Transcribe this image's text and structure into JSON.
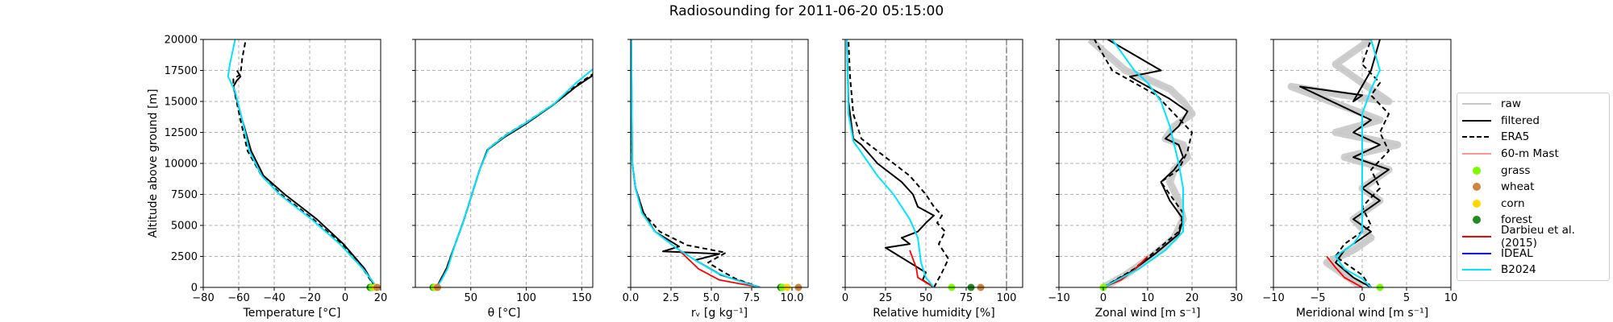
{
  "title": "Radiosounding for 2011-06-20 05:15:00",
  "colors": {
    "raw": "#c8c8c8",
    "filtered": "#000000",
    "era5": "#000000",
    "mast": "#ff5555",
    "grass": "#7cfc00",
    "wheat": "#cd853f",
    "corn": "#ffd700",
    "forest": "#228b22",
    "darbieu": "#ff0000",
    "ideal": "#0000ff",
    "b2024": "#00e5ff"
  },
  "legend": [
    {
      "key": "raw",
      "label": "raw",
      "style": "line"
    },
    {
      "key": "filtered",
      "label": "filtered",
      "style": "line"
    },
    {
      "key": "era5",
      "label": "ERA5",
      "style": "dash"
    },
    {
      "key": "mast",
      "label": "60-m Mast",
      "style": "thin"
    },
    {
      "key": "grass",
      "label": "grass",
      "style": "dot"
    },
    {
      "key": "wheat",
      "label": "wheat",
      "style": "dot"
    },
    {
      "key": "corn",
      "label": "corn",
      "style": "dot"
    },
    {
      "key": "forest",
      "label": "forest",
      "style": "dot"
    },
    {
      "key": "darbieu",
      "label": "Darbieu et al. (2015)",
      "style": "line"
    },
    {
      "key": "ideal",
      "label": "IDEAL",
      "style": "line"
    },
    {
      "key": "b2024",
      "label": "B2024",
      "style": "line"
    }
  ],
  "chart_data": [
    {
      "type": "line",
      "id": "temperature",
      "xlabel": "Temperature [°C]",
      "ylabel": "Altitude above ground [m]",
      "xlim": [
        -80,
        20
      ],
      "ylim": [
        0,
        20000
      ],
      "xticks": [
        -80,
        -60,
        -40,
        -20,
        0,
        20
      ],
      "xtick_labels": [
        "−80",
        "−60",
        "−40",
        "−20",
        "0",
        "20"
      ],
      "yticks": [
        0,
        2500,
        5000,
        7500,
        10000,
        12500,
        15000,
        17500,
        20000
      ],
      "ytick_labels": [
        "0",
        "2500",
        "5000",
        "7500",
        "10000",
        "12500",
        "15000",
        "17500",
        "20000"
      ],
      "series": [
        {
          "key": "era5",
          "x": [
            17,
            10,
            -2,
            -18,
            -36,
            -47,
            -55,
            -59,
            -63,
            -63,
            -59,
            -58,
            -56
          ],
          "y": [
            0,
            1500,
            3500,
            5500,
            7500,
            9000,
            11000,
            13500,
            16200,
            16800,
            17200,
            18500,
            20000
          ]
        },
        {
          "key": "filtered",
          "x": [
            17,
            11,
            -1,
            -16,
            -34,
            -46,
            -53,
            -58,
            -63,
            -61,
            -59,
            -61
          ],
          "y": [
            0,
            1500,
            3500,
            5500,
            7500,
            9000,
            11000,
            13500,
            16200,
            16700,
            17000,
            17500
          ]
        },
        {
          "key": "b2024",
          "x": [
            18,
            10,
            -3,
            -19,
            -37,
            -47,
            -54,
            -58,
            -62,
            -66,
            -65,
            -62
          ],
          "y": [
            0,
            1500,
            3500,
            5500,
            7500,
            9000,
            11000,
            13500,
            15800,
            17000,
            18000,
            20000
          ]
        }
      ],
      "points": [
        {
          "key": "forest",
          "x": 14,
          "y": 0
        },
        {
          "key": "grass",
          "x": 15,
          "y": 0
        },
        {
          "key": "corn",
          "x": 17,
          "y": 0
        },
        {
          "key": "wheat",
          "x": 18,
          "y": 0
        }
      ]
    },
    {
      "type": "line",
      "id": "theta",
      "xlabel": "θ [°C]",
      "ylabel": "",
      "xlim": [
        0,
        160
      ],
      "ylim": [
        0,
        20000
      ],
      "xticks": [
        50,
        100,
        150
      ],
      "xtick_labels": [
        "50",
        "100",
        "150"
      ],
      "yticks": [
        0,
        2500,
        5000,
        7500,
        10000,
        12500,
        15000,
        17500,
        20000
      ],
      "ytick_labels": [],
      "series": [
        {
          "key": "era5",
          "x": [
            20,
            22,
            28,
            36,
            44,
            51,
            58,
            66,
            80,
            100,
            125,
            145,
            160
          ],
          "y": [
            0,
            500,
            1500,
            3500,
            5500,
            7500,
            9500,
            11200,
            12200,
            13300,
            14800,
            16300,
            17200
          ]
        },
        {
          "key": "filtered",
          "x": [
            19,
            22,
            28,
            36,
            44,
            51,
            58,
            65,
            80,
            100,
            124,
            145,
            160
          ],
          "y": [
            0,
            500,
            1500,
            3500,
            5500,
            7500,
            9500,
            11100,
            12100,
            13200,
            14700,
            16200,
            17100
          ]
        },
        {
          "key": "b2024",
          "x": [
            19,
            23,
            29,
            36,
            44,
            51,
            58,
            66,
            82,
            102,
            125,
            145,
            160
          ],
          "y": [
            0,
            500,
            1500,
            3500,
            5500,
            7500,
            9500,
            11200,
            12300,
            13400,
            14800,
            16500,
            17600
          ]
        }
      ],
      "points": [
        {
          "key": "forest",
          "x": 16,
          "y": 0
        },
        {
          "key": "grass",
          "x": 17,
          "y": 0
        },
        {
          "key": "corn",
          "x": 19,
          "y": 0
        },
        {
          "key": "wheat",
          "x": 20,
          "y": 0
        }
      ]
    },
    {
      "type": "line",
      "id": "rv",
      "xlabel": "rᵥ [g kg⁻¹]",
      "ylabel": "",
      "xlim": [
        0,
        11
      ],
      "ylim": [
        0,
        20000
      ],
      "xticks": [
        0,
        2.5,
        5,
        7.5,
        10
      ],
      "xtick_labels": [
        "0.0",
        "2.5",
        "5.0",
        "7.5",
        "10.0"
      ],
      "yticks": [
        0,
        2500,
        5000,
        7500,
        10000,
        12500,
        15000,
        17500,
        20000
      ],
      "ytick_labels": [],
      "series": [
        {
          "key": "era5",
          "x": [
            8,
            6.5,
            5.8,
            4.8,
            5.9,
            3.5,
            1.8,
            0.8,
            0.3,
            0.1,
            0.05,
            0.02
          ],
          "y": [
            0,
            700,
            1200,
            2000,
            2800,
            3400,
            4500,
            6000,
            8000,
            10000,
            13000,
            20000
          ]
        },
        {
          "key": "filtered",
          "x": [
            8,
            6.8,
            5.6,
            4.0,
            5.5,
            2.0,
            3.0,
            1.5,
            0.8,
            0.3,
            0.1,
            0.03
          ],
          "y": [
            0,
            500,
            1000,
            2200,
            2700,
            2900,
            3300,
            4500,
            6000,
            8000,
            10000,
            20000
          ]
        },
        {
          "key": "darbieu",
          "x": [
            8,
            5.5,
            4.2,
            3.0
          ],
          "y": [
            0,
            600,
            1500,
            3000
          ]
        },
        {
          "key": "b2024",
          "x": [
            8,
            6.5,
            5.3,
            4.0,
            2.8,
            1.5,
            0.7,
            0.3,
            0.1,
            0.04
          ],
          "y": [
            0,
            600,
            1200,
            2200,
            3200,
            4500,
            6000,
            8000,
            10000,
            20000
          ]
        }
      ],
      "points": [
        {
          "key": "forest",
          "x": 9.3,
          "y": 0
        },
        {
          "key": "grass",
          "x": 9.4,
          "y": 0
        },
        {
          "key": "corn",
          "x": 9.7,
          "y": 0
        },
        {
          "key": "wheat",
          "x": 10.4,
          "y": 0
        }
      ]
    },
    {
      "type": "line",
      "id": "rh",
      "xlabel": "Relative humidity [%]",
      "ylabel": "",
      "xlim": [
        0,
        110
      ],
      "ylim": [
        0,
        20000
      ],
      "xticks": [
        0,
        25,
        50,
        75,
        100
      ],
      "xtick_labels": [
        "0",
        "25",
        "50",
        "75",
        "100"
      ],
      "yticks": [
        0,
        2500,
        5000,
        7500,
        10000,
        12500,
        15000,
        17500,
        20000
      ],
      "ytick_labels": [],
      "series": [
        {
          "key": "era5",
          "x": [
            55,
            60,
            64,
            58,
            62,
            57,
            60,
            55,
            50,
            40,
            25,
            10,
            5,
            3,
            2
          ],
          "y": [
            0,
            1200,
            2300,
            3500,
            4500,
            5200,
            5800,
            6500,
            7500,
            9000,
            10500,
            12000,
            14000,
            17000,
            20000
          ]
        },
        {
          "key": "filtered",
          "x": [
            55,
            48,
            50,
            40,
            30,
            25,
            40,
            35,
            45,
            50,
            55,
            45,
            42,
            35,
            20,
            10,
            5,
            2,
            1
          ],
          "y": [
            0,
            600,
            1200,
            2000,
            2800,
            3200,
            3500,
            4000,
            4500,
            5200,
            5800,
            6500,
            7500,
            8500,
            10000,
            11500,
            12000,
            15000,
            20000
          ]
        },
        {
          "key": "darbieu",
          "x": [
            55,
            45,
            44,
            40
          ],
          "y": [
            0,
            800,
            1600,
            3000
          ]
        },
        {
          "key": "b2024",
          "x": [
            55,
            50,
            47,
            45,
            40,
            30,
            20,
            12,
            5,
            2,
            1
          ],
          "y": [
            0,
            800,
            2000,
            4000,
            5500,
            7500,
            9000,
            10500,
            11800,
            14000,
            20000
          ]
        }
      ],
      "points": [
        {
          "key": "grass",
          "x": 66,
          "y": 0
        },
        {
          "key": "forest",
          "x": 78,
          "y": 0
        },
        {
          "key": "wheat",
          "x": 84,
          "y": 0
        }
      ],
      "vline": {
        "x": 100
      }
    },
    {
      "type": "line",
      "id": "zonal",
      "xlabel": "Zonal wind [m s⁻¹]",
      "ylabel": "",
      "xlim": [
        -10,
        30
      ],
      "ylim": [
        0,
        20000
      ],
      "xticks": [
        -10,
        0,
        10,
        20,
        30
      ],
      "xtick_labels": [
        "−10",
        "0",
        "10",
        "20",
        "30"
      ],
      "yticks": [
        0,
        2500,
        5000,
        7500,
        10000,
        12500,
        15000,
        17500,
        20000
      ],
      "ytick_labels": [],
      "series": [
        {
          "key": "raw",
          "x": [
            0,
            5,
            11,
            16,
            18,
            17,
            15,
            16,
            19,
            18,
            14,
            16,
            20,
            18,
            15,
            10,
            5,
            -3
          ],
          "y": [
            0,
            1000,
            2500,
            4000,
            5500,
            7000,
            8500,
            9500,
            10500,
            11500,
            12000,
            13000,
            14000,
            15000,
            16000,
            16800,
            17500,
            20000
          ]
        },
        {
          "key": "era5",
          "x": [
            0,
            7,
            12,
            17,
            18,
            15,
            13,
            17,
            19,
            20,
            16,
            12,
            7,
            2,
            -2
          ],
          "y": [
            0,
            1500,
            3000,
            4500,
            6000,
            7500,
            8500,
            9500,
            11000,
            12500,
            14000,
            15500,
            16500,
            17500,
            20000
          ]
        },
        {
          "key": "filtered",
          "x": [
            0,
            6,
            12,
            17,
            18,
            15,
            13,
            16,
            18,
            17,
            14,
            17,
            19,
            15,
            11,
            6,
            13,
            1
          ],
          "y": [
            0,
            1200,
            2800,
            4300,
            5500,
            7000,
            8500,
            9500,
            10500,
            11500,
            12000,
            13000,
            14200,
            15200,
            16000,
            17000,
            17500,
            20000
          ]
        },
        {
          "key": "darbieu",
          "x": [
            0,
            4,
            7,
            10
          ],
          "y": [
            0,
            600,
            1400,
            2500
          ]
        },
        {
          "key": "b2024",
          "x": [
            0,
            8,
            14,
            18,
            18,
            18,
            17,
            15,
            13,
            10,
            7,
            2
          ],
          "y": [
            0,
            1500,
            3000,
            4500,
            6000,
            8000,
            10000,
            13000,
            15000,
            16500,
            17500,
            20000
          ]
        }
      ],
      "points": [
        {
          "key": "grass",
          "x": 0,
          "y": 0
        }
      ]
    },
    {
      "type": "line",
      "id": "meridional",
      "xlabel": "Meridional wind [m s⁻¹]",
      "ylabel": "",
      "xlim": [
        -10,
        10
      ],
      "ylim": [
        0,
        20000
      ],
      "xticks": [
        -10,
        -5,
        0,
        5,
        10
      ],
      "xtick_labels": [
        "−10",
        "−5",
        "0",
        "5",
        "10"
      ],
      "yticks": [
        0,
        2500,
        5000,
        7500,
        10000,
        12500,
        15000,
        17500,
        20000
      ],
      "ytick_labels": [],
      "series": [
        {
          "key": "raw",
          "x": [
            0,
            -2,
            -4,
            -1,
            1,
            -1,
            2,
            0,
            3,
            -2,
            4,
            -3,
            2,
            -8,
            -2,
            3,
            -3,
            1
          ],
          "y": [
            0,
            1000,
            2000,
            3000,
            4000,
            5500,
            7000,
            8000,
            9500,
            10500,
            11500,
            12500,
            13500,
            16200,
            15500,
            15000,
            18000,
            20000
          ]
        },
        {
          "key": "era5",
          "x": [
            1,
            0,
            -3,
            -2,
            1,
            0,
            2,
            1,
            3,
            2,
            3,
            1,
            2,
            0,
            1
          ],
          "y": [
            0,
            1000,
            2500,
            3500,
            5000,
            6500,
            8000,
            9500,
            11000,
            12500,
            14000,
            15500,
            16500,
            18000,
            20000
          ]
        },
        {
          "key": "filtered",
          "x": [
            1,
            -1,
            -3,
            -2,
            1,
            -1,
            2,
            0,
            3,
            -1,
            2,
            -1,
            1,
            -7,
            0,
            -1,
            1,
            2
          ],
          "y": [
            0,
            800,
            2000,
            3000,
            4500,
            5500,
            7000,
            8000,
            9500,
            10500,
            11500,
            12500,
            13500,
            16200,
            15500,
            15000,
            17500,
            20000
          ]
        },
        {
          "key": "darbieu",
          "x": [
            0,
            -2,
            -3,
            -4
          ],
          "y": [
            0,
            800,
            1600,
            2500
          ]
        },
        {
          "key": "b2024",
          "x": [
            1,
            0,
            -2,
            -3,
            -1,
            0,
            0,
            0,
            0,
            0,
            0,
            1,
            2,
            1
          ],
          "y": [
            0,
            700,
            1500,
            2500,
            3500,
            4500,
            6000,
            8000,
            10000,
            12000,
            14000,
            16000,
            17500,
            20000
          ]
        }
      ],
      "points": [
        {
          "key": "grass",
          "x": 2,
          "y": 0
        }
      ]
    }
  ]
}
